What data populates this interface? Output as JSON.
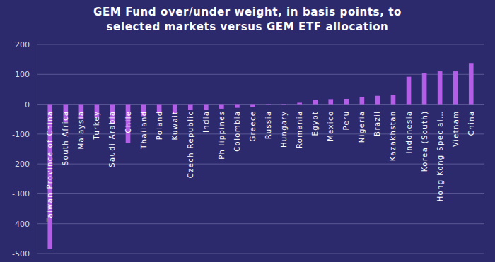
{
  "chart_data": {
    "type": "bar",
    "title": [
      "GEM Fund over/under weight, in basis points, to",
      "selected markets versus GEM ETF allocation"
    ],
    "categories": [
      "Taiwan Province of China",
      "South Africa",
      "Malaysia",
      "Turkey",
      "Saudi Arabia",
      "Chile",
      "Thailand",
      "Poland",
      "Kuwait",
      "Czech Republic",
      "India",
      "Philippines",
      "Colombia",
      "Greece",
      "Russia",
      "Hungary",
      "Romania",
      "Egypt",
      "Mexico",
      "Peru",
      "Nigeria",
      "Brazil",
      "Kazakhstan",
      "Indonesia",
      "Korea (South)",
      "Hong Kong Special…",
      "Vietnam",
      "China"
    ],
    "values": [
      -485,
      -60,
      -50,
      -45,
      -65,
      -130,
      -40,
      -30,
      -30,
      -20,
      -20,
      -15,
      -12,
      -10,
      -3,
      -2,
      5,
      15,
      17,
      18,
      25,
      28,
      32,
      92,
      103,
      110,
      110,
      138
    ],
    "color": "#b45ee8",
    "ylim": [
      -500,
      200
    ],
    "yticks": [
      -500,
      -400,
      -300,
      -200,
      -100,
      0,
      100,
      200
    ],
    "grid": true
  }
}
